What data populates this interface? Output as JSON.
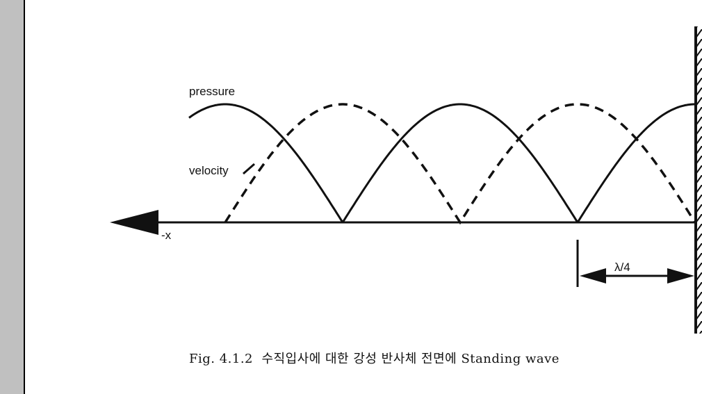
{
  "labels": {
    "pressure": "pressure",
    "velocity": "velocity",
    "axis": "-x",
    "dimension": "λ/4"
  },
  "caption": "Fig. 4.1.2  수직입사에 대한 강성 반사체 전면에 Standing wave",
  "colors": {
    "line": "#111111",
    "margin": "#c0c0c0"
  }
}
